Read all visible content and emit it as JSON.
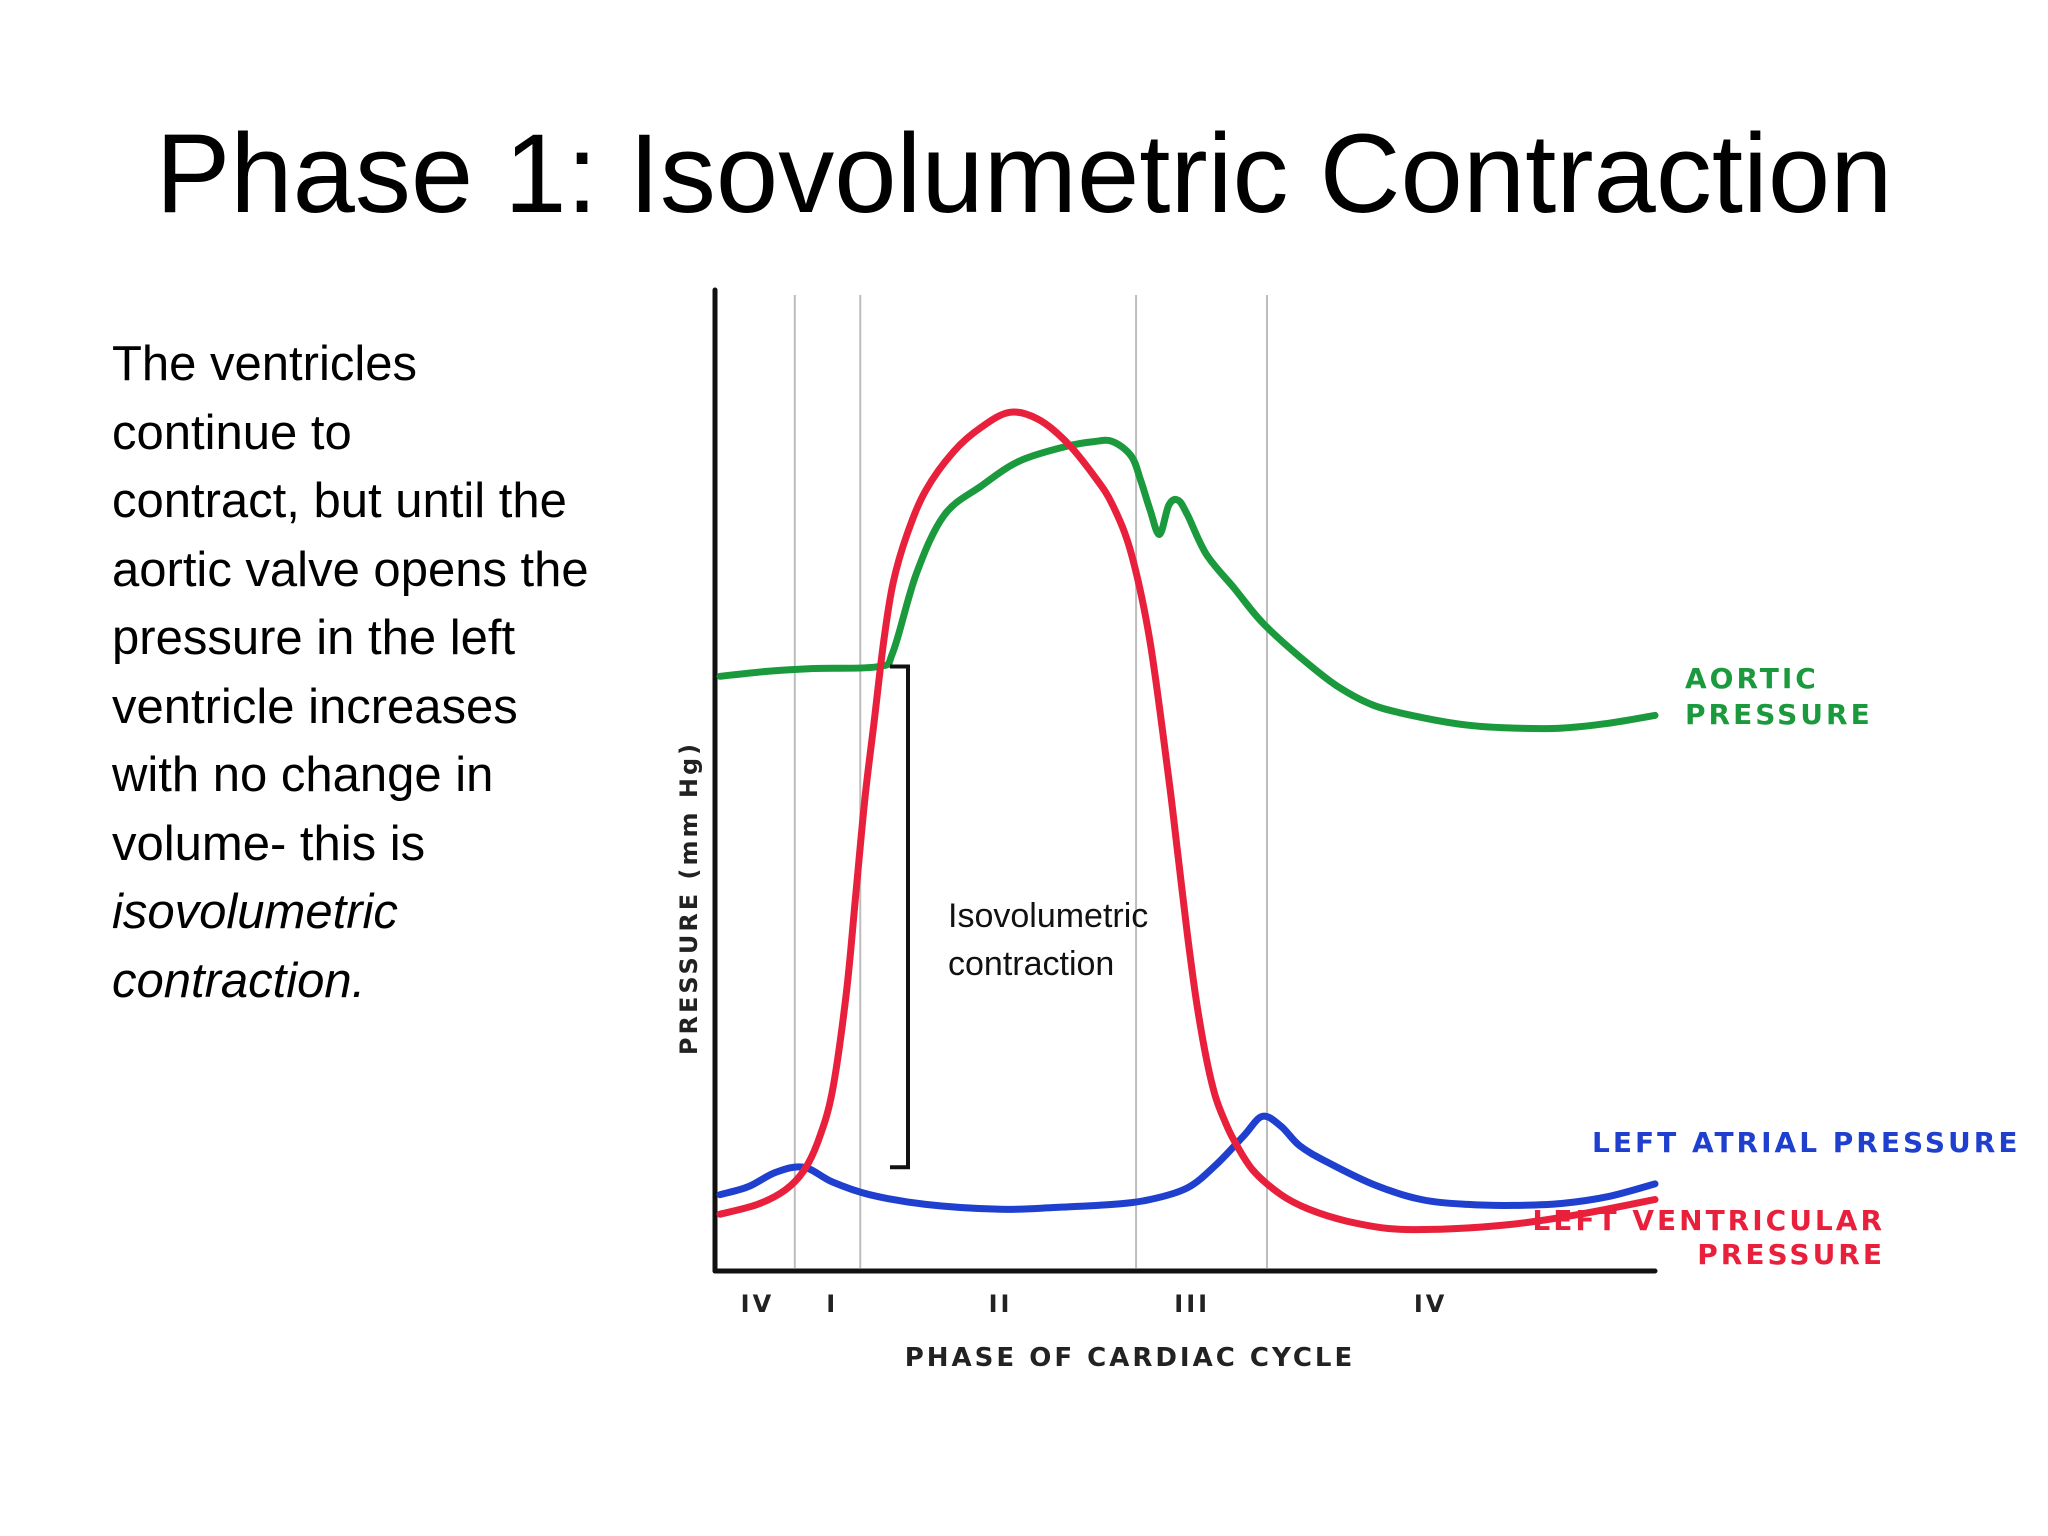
{
  "slide": {
    "title": "Phase 1: Isovolumetric Contraction",
    "body_lines": [
      {
        "text": "The ventricles",
        "italic": false
      },
      {
        "text": "continue to",
        "italic": false
      },
      {
        "text": "contract, but until the",
        "italic": false
      },
      {
        "text": "aortic valve opens the",
        "italic": false
      },
      {
        "text": "pressure in the left",
        "italic": false
      },
      {
        "text": "ventricle increases",
        "italic": false
      },
      {
        "text": "with no change in",
        "italic": false
      },
      {
        "text": "volume- this is",
        "italic": false
      },
      {
        "text": "isovolumetric",
        "italic": true
      },
      {
        "text": "contraction.",
        "italic": true
      }
    ]
  },
  "chart_data": {
    "type": "line",
    "title": "",
    "xlabel": "PHASE OF CARDIAC CYCLE",
    "ylabel": "PRESSURE (mm Hg)",
    "xlim": [
      0,
      100
    ],
    "ylim": [
      0,
      100
    ],
    "grid": false,
    "phase_boundaries": [
      8,
      15,
      44.5,
      58.5
    ],
    "phase_labels": [
      {
        "label": "IV",
        "x": 4
      },
      {
        "label": "I",
        "x": 12
      },
      {
        "label": "II",
        "x": 30
      },
      {
        "label": "III",
        "x": 50.5
      },
      {
        "label": "IV",
        "x": 76
      }
    ],
    "series": [
      {
        "name": "AORTIC PRESSURE",
        "label_lines": [
          "AORTIC",
          "PRESSURE"
        ],
        "color": "#1a9a3c",
        "x": [
          0,
          5,
          10,
          17,
          18.5,
          21,
          24,
          28,
          32,
          37,
          40,
          42,
          44,
          45,
          46,
          47,
          48,
          49,
          50,
          52,
          55,
          58,
          62,
          66,
          70,
          75,
          80,
          85,
          90,
          95,
          100
        ],
        "y": [
          60.5,
          61,
          61.3,
          61.5,
          63,
          71,
          77,
          80,
          82.5,
          84,
          84.5,
          84.5,
          83,
          80.5,
          77.5,
          75,
          78,
          78.5,
          77,
          73,
          69.5,
          66,
          62.5,
          59.5,
          57.5,
          56.3,
          55.5,
          55.2,
          55.2,
          55.7,
          56.5
        ]
      },
      {
        "name": "LEFT ATRIAL PRESSURE",
        "label_lines": [
          "LEFT ATRIAL PRESSURE"
        ],
        "color": "#1f3fcf",
        "x": [
          0,
          3,
          6,
          9,
          12,
          16,
          22,
          30,
          36,
          42,
          46,
          50,
          53,
          56,
          58,
          60,
          62,
          65,
          70,
          75,
          80,
          85,
          90,
          95,
          100
        ],
        "y": [
          7.5,
          8.3,
          9.8,
          10.3,
          8.8,
          7.5,
          6.5,
          6,
          6.2,
          6.5,
          7,
          8.2,
          10.5,
          13.5,
          15.5,
          14.5,
          12.5,
          10.8,
          8.5,
          7,
          6.5,
          6.4,
          6.6,
          7.3,
          8.6
        ]
      },
      {
        "name": "LEFT VENTRICULAR PRESSURE",
        "label_lines": [
          "LEFT VENTRICULAR",
          "PRESSURE"
        ],
        "color": "#e8203c",
        "x": [
          0,
          4,
          7,
          9,
          10.5,
          12,
          13.5,
          14.5,
          15.5,
          16.5,
          17.5,
          18.5,
          20,
          22,
          25,
          28,
          31,
          34,
          37,
          40,
          42,
          44,
          46,
          48,
          49,
          50,
          51,
          52,
          53,
          54,
          55,
          57,
          60,
          63,
          67,
          72,
          78,
          85,
          92,
          100
        ],
        "y": [
          5.5,
          6.5,
          8,
          10,
          13,
          18,
          28,
          38,
          48,
          56,
          64,
          70,
          75,
          79.5,
          83.5,
          86,
          87.5,
          86.8,
          84.5,
          81,
          78,
          73,
          64,
          50,
          42,
          34,
          27,
          21.5,
          17.5,
          15,
          13,
          10,
          7.5,
          6,
          4.8,
          4,
          4,
          4.5,
          5.5,
          7
        ]
      }
    ],
    "annotation": {
      "text_lines": [
        "Isovolumetric",
        "contraction"
      ],
      "bracket_y_range": [
        10.3,
        61.5
      ]
    }
  }
}
